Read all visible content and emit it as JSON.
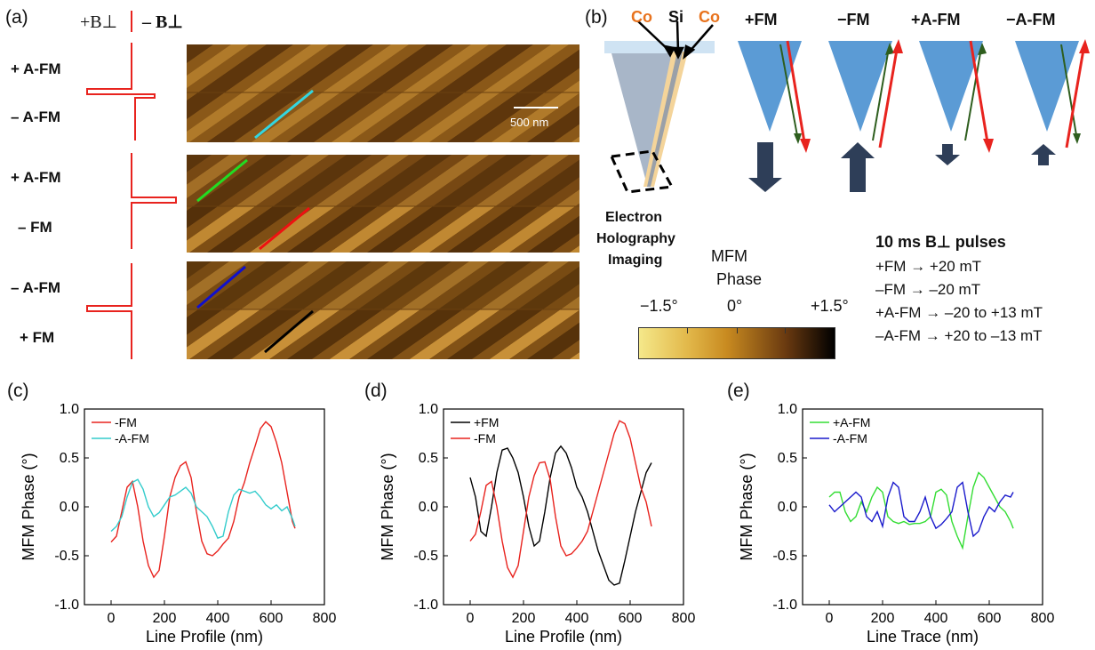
{
  "panel_a": {
    "letter": "(a)",
    "field_plus": "+B⊥",
    "field_minus": "– B⊥",
    "rows": [
      {
        "top_label": "+ A-FM",
        "bottom_label": "– A-FM",
        "line_colors": [
          "#33d6e0"
        ]
      },
      {
        "top_label": "+ A-FM",
        "bottom_label": "– FM",
        "line_colors": [
          "#22dd22",
          "#ee1111"
        ]
      },
      {
        "top_label": "– A-FM",
        "bottom_label": "+ FM",
        "line_colors": [
          "#1010cc",
          "#000000"
        ]
      }
    ],
    "scale_bar": "500 nm"
  },
  "panel_b": {
    "letter": "(b)",
    "co_left": "Co",
    "si": "Si",
    "co_right": "Co",
    "holography": [
      "Electron",
      "Holography",
      "Imaging"
    ],
    "tip_states": [
      "+FM",
      "−FM",
      "+A-FM",
      "−A-FM"
    ],
    "colorbar": {
      "title": [
        "MFM",
        "Phase"
      ],
      "ticks": [
        "−1.5°",
        "0°",
        "+1.5°"
      ],
      "colors": [
        "#f5e88a",
        "#c88a20",
        "#6a3a10",
        "#000000"
      ]
    },
    "pulses": {
      "title": "10 ms B⊥ pulses",
      "lines": [
        "+FM → +20 mT",
        "–FM → –20 mT",
        "+A-FM → –20 to +13 mT",
        "–A-FM → +20 to –13 mT"
      ]
    }
  },
  "chart_data": [
    {
      "type": "line",
      "panel": "(c)",
      "xlabel": "Line Profile (nm)",
      "ylabel": "MFM Phase (°)",
      "xlim": [
        -100,
        800
      ],
      "ylim": [
        -1.0,
        1.0
      ],
      "xticks": [
        0,
        200,
        400,
        600,
        800
      ],
      "yticks": [
        -1.0,
        -0.5,
        0.0,
        0.5,
        1.0
      ],
      "legend_position": "top-left",
      "series": [
        {
          "name": "-FM",
          "color": "#e8231e",
          "x": [
            0,
            20,
            40,
            60,
            80,
            100,
            120,
            140,
            160,
            180,
            200,
            220,
            240,
            260,
            280,
            300,
            320,
            340,
            360,
            380,
            400,
            420,
            440,
            460,
            480,
            500,
            520,
            540,
            560,
            580,
            600,
            620,
            640,
            660,
            680,
            690
          ],
          "y": [
            -0.36,
            -0.3,
            -0.05,
            0.2,
            0.26,
            0.0,
            -0.35,
            -0.6,
            -0.72,
            -0.65,
            -0.3,
            0.1,
            0.3,
            0.42,
            0.46,
            0.3,
            -0.05,
            -0.35,
            -0.48,
            -0.5,
            -0.45,
            -0.38,
            -0.32,
            -0.15,
            0.1,
            0.25,
            0.45,
            0.62,
            0.8,
            0.87,
            0.82,
            0.66,
            0.45,
            0.15,
            -0.15,
            -0.22
          ]
        },
        {
          "name": "-A-FM",
          "color": "#33cccc",
          "x": [
            0,
            20,
            40,
            60,
            80,
            100,
            120,
            140,
            160,
            180,
            200,
            220,
            240,
            260,
            280,
            300,
            320,
            340,
            360,
            380,
            400,
            420,
            440,
            460,
            480,
            500,
            520,
            540,
            560,
            580,
            600,
            620,
            640,
            660,
            680,
            690
          ],
          "y": [
            -0.25,
            -0.2,
            -0.1,
            0.1,
            0.25,
            0.28,
            0.18,
            0.0,
            -0.1,
            -0.06,
            0.02,
            0.1,
            0.12,
            0.16,
            0.2,
            0.14,
            0.0,
            -0.05,
            -0.1,
            -0.2,
            -0.32,
            -0.3,
            -0.05,
            0.12,
            0.18,
            0.16,
            0.14,
            0.16,
            0.1,
            0.02,
            -0.02,
            0.02,
            -0.04,
            0.0,
            -0.12,
            -0.2
          ]
        }
      ]
    },
    {
      "type": "line",
      "panel": "(d)",
      "xlabel": "Line Profile (nm)",
      "ylabel": "MFM Phase (°)",
      "xlim": [
        -100,
        800
      ],
      "ylim": [
        -1.0,
        1.0
      ],
      "xticks": [
        0,
        200,
        400,
        600,
        800
      ],
      "yticks": [
        -1.0,
        -0.5,
        0.0,
        0.5,
        1.0
      ],
      "legend_position": "top-left",
      "series": [
        {
          "name": "+FM",
          "color": "#000000",
          "x": [
            0,
            20,
            40,
            60,
            80,
            100,
            120,
            140,
            160,
            180,
            200,
            220,
            240,
            260,
            280,
            300,
            320,
            340,
            360,
            380,
            400,
            420,
            440,
            460,
            480,
            500,
            520,
            540,
            560,
            580,
            600,
            620,
            640,
            660,
            680
          ],
          "y": [
            0.3,
            0.1,
            -0.25,
            -0.3,
            0.0,
            0.35,
            0.58,
            0.6,
            0.5,
            0.35,
            0.1,
            -0.2,
            -0.4,
            -0.35,
            -0.05,
            0.3,
            0.55,
            0.62,
            0.55,
            0.4,
            0.2,
            0.1,
            -0.05,
            -0.25,
            -0.45,
            -0.6,
            -0.75,
            -0.8,
            -0.78,
            -0.55,
            -0.3,
            -0.05,
            0.15,
            0.35,
            0.45
          ]
        },
        {
          "name": "-FM",
          "color": "#e8231e",
          "x": [
            0,
            20,
            40,
            60,
            80,
            100,
            120,
            140,
            160,
            180,
            200,
            220,
            240,
            260,
            280,
            300,
            320,
            340,
            360,
            380,
            400,
            420,
            440,
            460,
            480,
            500,
            520,
            540,
            560,
            580,
            600,
            620,
            640,
            660,
            680
          ],
          "y": [
            -0.35,
            -0.28,
            -0.05,
            0.22,
            0.26,
            0.0,
            -0.35,
            -0.62,
            -0.72,
            -0.6,
            -0.25,
            0.1,
            0.32,
            0.45,
            0.46,
            0.28,
            -0.1,
            -0.4,
            -0.5,
            -0.48,
            -0.42,
            -0.35,
            -0.25,
            -0.05,
            0.15,
            0.35,
            0.55,
            0.75,
            0.88,
            0.85,
            0.7,
            0.45,
            0.2,
            0.05,
            -0.2
          ]
        }
      ]
    },
    {
      "type": "line",
      "panel": "(e)",
      "xlabel": "Line Trace (nm)",
      "ylabel": "MFM Phase (°)",
      "xlim": [
        -100,
        800
      ],
      "ylim": [
        -1.0,
        1.0
      ],
      "xticks": [
        0,
        200,
        400,
        600,
        800
      ],
      "yticks": [
        -1.0,
        -0.5,
        0.0,
        0.5,
        1.0
      ],
      "legend_position": "top-left",
      "series": [
        {
          "name": "+A-FM",
          "color": "#33dd33",
          "x": [
            0,
            20,
            40,
            60,
            80,
            100,
            120,
            140,
            160,
            180,
            200,
            220,
            240,
            260,
            280,
            300,
            320,
            340,
            360,
            380,
            400,
            420,
            440,
            460,
            480,
            500,
            520,
            540,
            560,
            580,
            600,
            620,
            640,
            660,
            680,
            690
          ],
          "y": [
            0.1,
            0.15,
            0.15,
            -0.05,
            -0.15,
            -0.1,
            0.05,
            -0.05,
            0.1,
            0.2,
            0.15,
            -0.1,
            -0.15,
            -0.17,
            -0.15,
            -0.18,
            -0.17,
            -0.17,
            -0.15,
            -0.1,
            0.15,
            0.18,
            0.12,
            -0.15,
            -0.3,
            -0.42,
            -0.1,
            0.2,
            0.35,
            0.3,
            0.2,
            0.1,
            0.0,
            -0.05,
            -0.15,
            -0.22
          ]
        },
        {
          "name": "-A-FM",
          "color": "#1a1acc",
          "x": [
            0,
            20,
            40,
            60,
            80,
            100,
            120,
            140,
            160,
            180,
            200,
            220,
            240,
            260,
            280,
            300,
            320,
            340,
            360,
            380,
            400,
            420,
            440,
            460,
            480,
            500,
            520,
            540,
            560,
            580,
            600,
            620,
            640,
            660,
            680,
            690
          ],
          "y": [
            0.02,
            -0.05,
            0.0,
            0.05,
            0.1,
            0.15,
            0.1,
            -0.1,
            -0.15,
            -0.05,
            -0.2,
            0.1,
            0.25,
            0.2,
            -0.1,
            -0.15,
            -0.15,
            -0.05,
            0.1,
            -0.1,
            -0.22,
            -0.18,
            -0.12,
            -0.05,
            0.2,
            0.25,
            -0.05,
            -0.3,
            -0.25,
            -0.1,
            0.0,
            -0.05,
            0.05,
            0.12,
            0.1,
            0.15
          ]
        }
      ]
    }
  ]
}
